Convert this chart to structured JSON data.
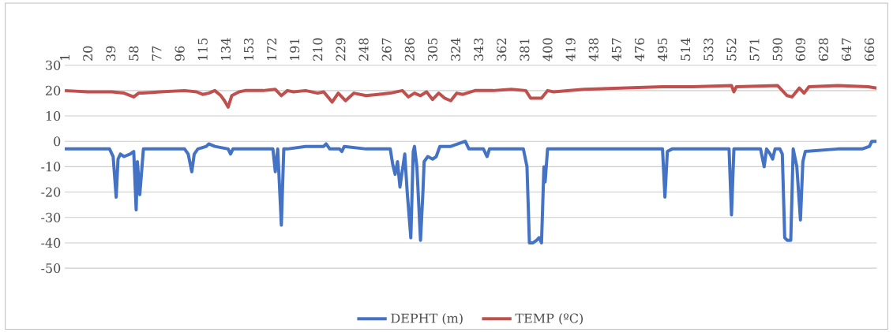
{
  "chart_data": {
    "type": "line",
    "legend": "bottom",
    "grid": "y",
    "xlim": [
      1,
      672
    ],
    "xticks": [
      1,
      20,
      39,
      58,
      77,
      96,
      115,
      134,
      153,
      172,
      191,
      210,
      229,
      248,
      267,
      286,
      305,
      324,
      343,
      362,
      381,
      400,
      419,
      438,
      457,
      476,
      495,
      514,
      533,
      552,
      571,
      590,
      609,
      628,
      647,
      666
    ],
    "ylim": [
      -50,
      30
    ],
    "yticks": [
      -50,
      -40,
      -30,
      -20,
      -10,
      0,
      10,
      20,
      30
    ],
    "series": [
      {
        "name": "DEPHT (m)",
        "color": "#4472c4",
        "x": [
          1,
          20,
          38,
          41,
          43.5,
          45,
          47,
          50,
          55,
          58,
          60,
          61,
          63,
          66,
          80,
          100,
          103,
          106,
          108,
          111,
          118,
          120,
          125,
          136,
          138,
          140,
          160,
          173,
          175,
          177,
          180,
          182,
          185,
          200,
          215,
          217,
          220,
          228,
          230,
          232,
          250,
          260,
          270,
          272,
          274,
          276,
          278,
          282,
          284,
          287,
          289,
          290,
          292,
          295,
          297,
          298,
          301,
          305,
          308,
          311,
          320,
          332,
          335,
          347,
          350,
          352,
          365,
          380,
          383,
          385,
          388,
          391,
          393,
          395,
          397,
          398,
          400,
          420,
          450,
          495,
          497,
          499,
          503,
          530,
          550,
          552,
          554,
          576,
          579,
          581,
          584,
          586,
          588,
          592,
          594,
          596,
          598,
          601,
          603,
          606,
          609,
          611,
          613,
          640,
          660,
          666,
          668,
          672
        ],
        "values": [
          -3,
          -3,
          -3,
          -6,
          -22,
          -7,
          -5,
          -6,
          -5,
          -4,
          -27,
          -8,
          -21,
          -3,
          -3,
          -3,
          -5,
          -12,
          -5,
          -3,
          -2,
          -1,
          -2,
          -3,
          -5,
          -3,
          -3,
          -3,
          -12,
          -3,
          -33,
          -3,
          -3,
          -2,
          -2,
          -1,
          -3,
          -3,
          -4,
          -2,
          -3,
          -3,
          -3,
          -9,
          -13,
          -8,
          -18,
          -5,
          -20,
          -38,
          -4,
          -2,
          -10,
          -39,
          -20,
          -8,
          -6,
          -7,
          -6,
          -2,
          -2,
          0,
          -3,
          -3,
          -6,
          -3,
          -3,
          -3,
          -10,
          -40,
          -40,
          -39,
          -38,
          -40,
          -10,
          -16,
          -3,
          -3,
          -3,
          -3,
          -22,
          -4,
          -3,
          -3,
          -3,
          -29,
          -3,
          -3,
          -10,
          -3,
          -5,
          -7,
          -3,
          -3,
          -5,
          -38,
          -39,
          -39,
          -3,
          -10,
          -31,
          -8,
          -4,
          -3,
          -3,
          -2,
          0,
          0
        ]
      },
      {
        "name": "TEMP (ºC)",
        "color": "#c0504d",
        "x": [
          1,
          20,
          40,
          50,
          58,
          62,
          65,
          80,
          100,
          110,
          115,
          120,
          125,
          130,
          133,
          136,
          139,
          145,
          150,
          165,
          175,
          180,
          185,
          190,
          200,
          210,
          215,
          222,
          227,
          233,
          240,
          250,
          260,
          270,
          280,
          285,
          290,
          295,
          300,
          305,
          310,
          315,
          320,
          325,
          330,
          340,
          355,
          370,
          382,
          386,
          395,
          400,
          405,
          430,
          460,
          495,
          520,
          552,
          554,
          556,
          590,
          598,
          602,
          608,
          612,
          616,
          640,
          665,
          672
        ],
        "values": [
          20,
          19.5,
          19.5,
          19,
          17.5,
          19,
          19,
          19.5,
          20,
          19.5,
          18.5,
          19,
          20,
          18,
          16,
          13.5,
          18,
          19.5,
          20,
          20,
          20.5,
          18,
          20,
          19.5,
          20,
          19,
          19.5,
          15.5,
          19,
          16,
          19,
          18,
          18.5,
          19,
          20,
          17.5,
          19,
          18,
          19.5,
          16.5,
          19,
          17,
          16,
          19,
          18.5,
          20,
          20,
          20.5,
          20,
          17,
          17,
          20,
          19.5,
          20.5,
          21,
          21.5,
          21.5,
          22,
          19.5,
          21.5,
          22,
          18,
          17.5,
          21,
          19,
          21.5,
          22,
          21.5,
          21
        ]
      }
    ]
  }
}
